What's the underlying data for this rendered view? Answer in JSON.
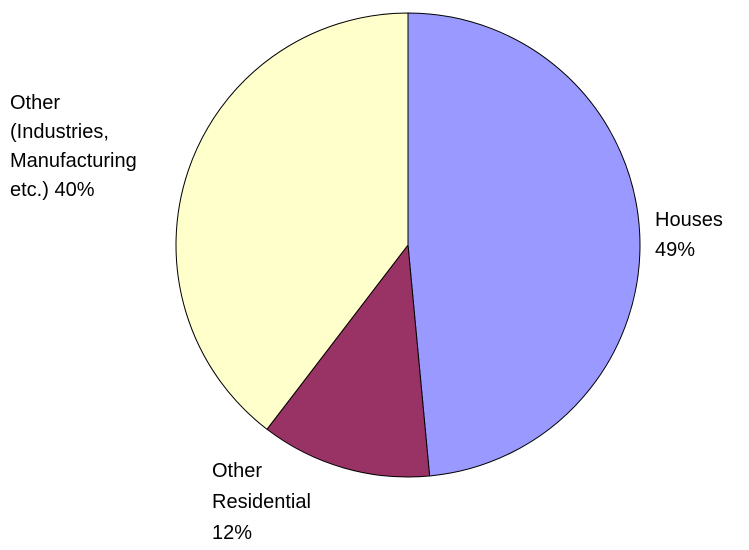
{
  "chart_data": {
    "type": "pie",
    "slices": [
      {
        "label_lines": [
          "Houses",
          "49%"
        ],
        "value": 49,
        "color": "#9999ff"
      },
      {
        "label_lines": [
          "Other",
          "Residential",
          "12%"
        ],
        "value": 12,
        "color": "#993366"
      },
      {
        "label_lines": [
          "Other",
          "(Industries,",
          "Manufacturing",
          "etc.) 40%"
        ],
        "value": 40,
        "color": "#ffffcc"
      }
    ],
    "start_angle_deg": 0,
    "direction": "clockwise",
    "legend": "none"
  }
}
